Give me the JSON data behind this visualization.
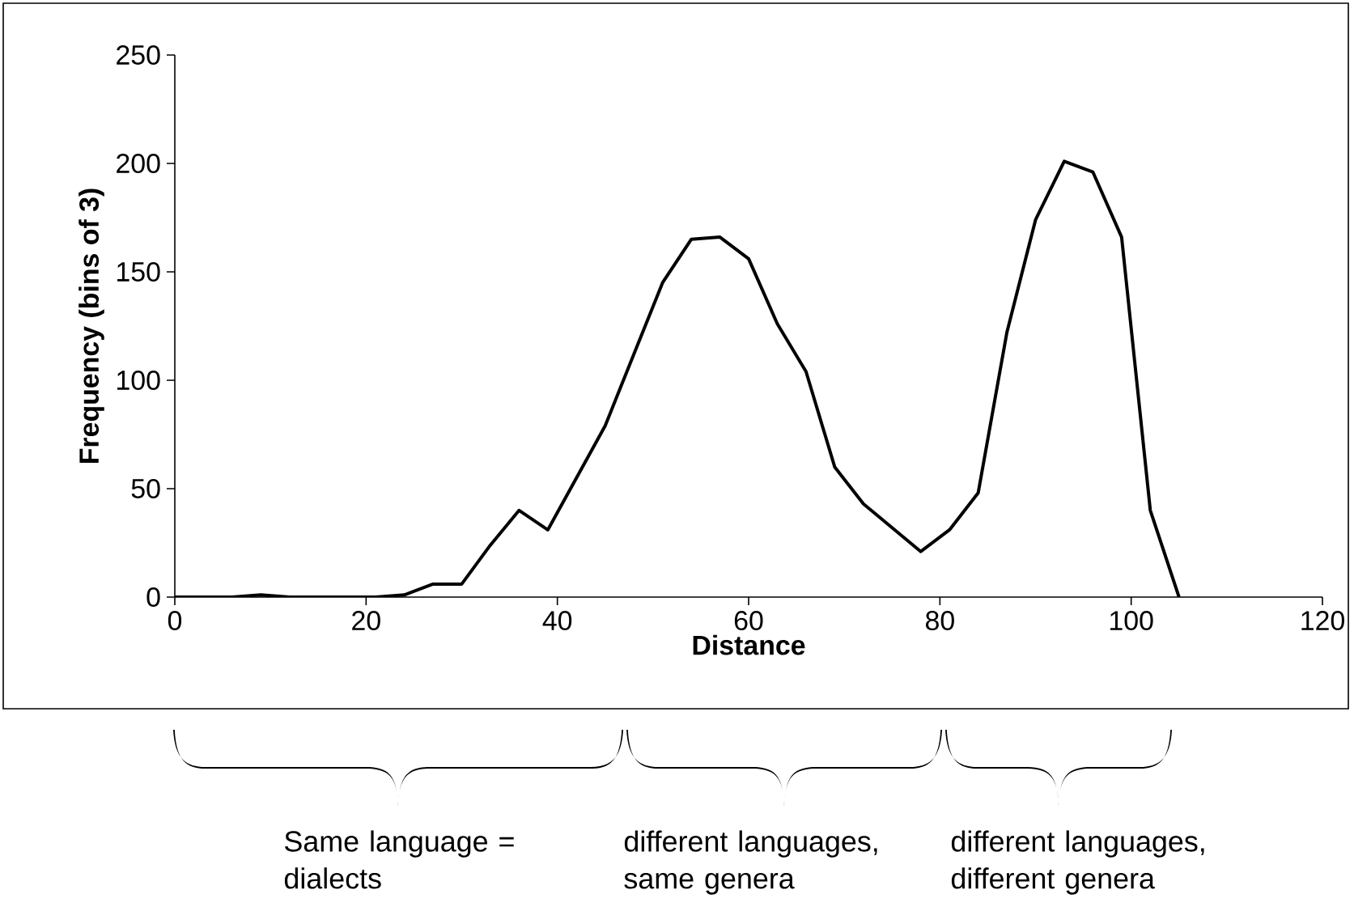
{
  "chart_data": {
    "type": "line",
    "xlabel": "Distance",
    "ylabel": "Frequency (bins of 3)",
    "x": [
      0,
      3,
      6,
      9,
      12,
      15,
      18,
      21,
      24,
      27,
      30,
      33,
      36,
      39,
      42,
      45,
      48,
      51,
      54,
      57,
      60,
      63,
      66,
      69,
      72,
      75,
      78,
      81,
      84,
      87,
      90,
      93,
      96,
      99,
      102,
      105
    ],
    "values": [
      0,
      0,
      0,
      1,
      0,
      0,
      0,
      0,
      1,
      6,
      6,
      24,
      40,
      31,
      55,
      79,
      112,
      145,
      165,
      166,
      156,
      126,
      104,
      60,
      43,
      32,
      21,
      31,
      48,
      122,
      174,
      201,
      196,
      166,
      40,
      0
    ],
    "color": "#000000",
    "xlim": [
      0,
      120
    ],
    "xticks": [
      0,
      20,
      40,
      60,
      80,
      100,
      120
    ],
    "ylim": [
      0,
      250
    ],
    "yticks": [
      0,
      50,
      100,
      150,
      200,
      250
    ],
    "annotations": [
      "Same language = dialects",
      "different languages, same genera",
      "different languages, different genera"
    ]
  }
}
